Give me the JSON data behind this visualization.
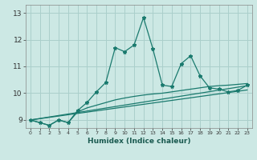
{
  "title": "",
  "xlabel": "Humidex (Indice chaleur)",
  "xlim": [
    -0.5,
    23.5
  ],
  "ylim": [
    8.7,
    13.3
  ],
  "xticks": [
    0,
    1,
    2,
    3,
    4,
    5,
    6,
    7,
    8,
    9,
    10,
    11,
    12,
    13,
    14,
    15,
    16,
    17,
    18,
    19,
    20,
    21,
    22,
    23
  ],
  "yticks": [
    9,
    10,
    11,
    12,
    13
  ],
  "background_color": "#cce8e4",
  "grid_color": "#aacfcb",
  "line_color": "#1a7a6e",
  "main_line_x": [
    0,
    1,
    2,
    3,
    4,
    5,
    6,
    7,
    8,
    9,
    10,
    11,
    12,
    13,
    14,
    15,
    16,
    17,
    18,
    19,
    20,
    21,
    22,
    23
  ],
  "main_line_y": [
    9.0,
    8.9,
    8.8,
    9.0,
    8.9,
    9.35,
    9.65,
    10.05,
    10.4,
    11.7,
    11.55,
    11.8,
    12.82,
    11.65,
    10.3,
    10.25,
    11.1,
    11.4,
    10.65,
    10.2,
    10.15,
    10.05,
    10.1,
    10.3
  ],
  "curve2_x": [
    0,
    1,
    2,
    3,
    4,
    5,
    6,
    7,
    8,
    9,
    10,
    11,
    12,
    13,
    14,
    15,
    16,
    17,
    18,
    19,
    20,
    21,
    22,
    23
  ],
  "curve2_y": [
    9.0,
    8.9,
    8.8,
    9.0,
    8.9,
    9.3,
    9.45,
    9.55,
    9.65,
    9.75,
    9.82,
    9.88,
    9.93,
    9.97,
    10.0,
    10.05,
    10.1,
    10.15,
    10.2,
    10.25,
    10.28,
    10.3,
    10.33,
    10.36
  ],
  "reg_line1": [
    [
      0,
      9.0
    ],
    [
      23,
      10.12
    ]
  ],
  "reg_line2": [
    [
      0,
      9.0
    ],
    [
      23,
      10.28
    ]
  ]
}
